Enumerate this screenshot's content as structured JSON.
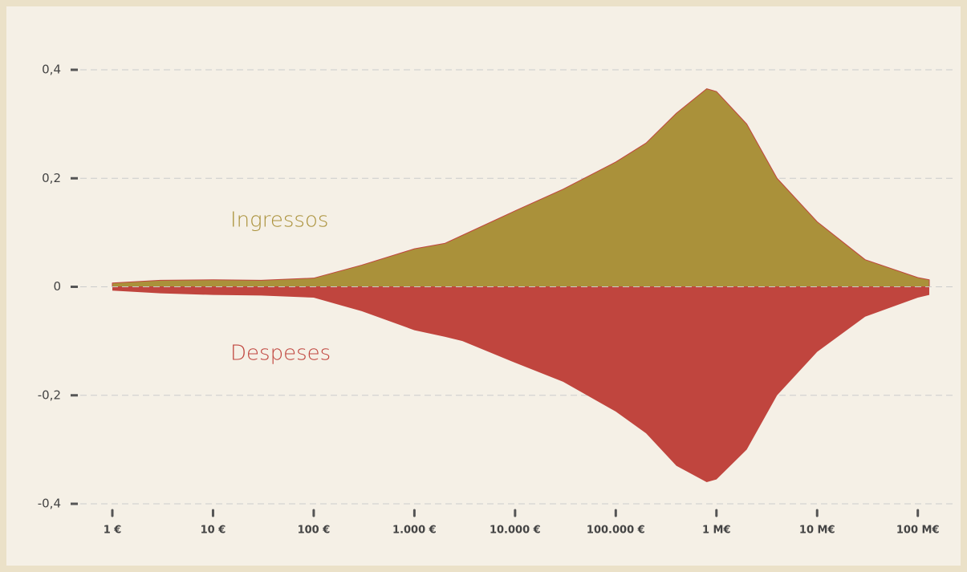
{
  "chart_data": {
    "type": "area",
    "xscale": "log",
    "x": [
      1,
      3,
      10,
      30,
      100,
      300,
      1000,
      2000,
      3000,
      10000,
      30000,
      100000,
      200000,
      400000,
      800000,
      1000000,
      2000000,
      4000000,
      10000000,
      30000000,
      100000000,
      130000000
    ],
    "series": [
      {
        "name": "Ingressos",
        "color": "#aa913a",
        "values": [
          0.007,
          0.012,
          0.013,
          0.012,
          0.016,
          0.04,
          0.07,
          0.08,
          0.095,
          0.14,
          0.18,
          0.23,
          0.265,
          0.32,
          0.365,
          0.36,
          0.3,
          0.2,
          0.12,
          0.05,
          0.017,
          0.013
        ]
      },
      {
        "name": "Despeses",
        "color": "#c0453e",
        "values": [
          -0.007,
          -0.012,
          -0.015,
          -0.016,
          -0.02,
          -0.045,
          -0.08,
          -0.092,
          -0.1,
          -0.14,
          -0.175,
          -0.23,
          -0.27,
          -0.33,
          -0.36,
          -0.355,
          -0.3,
          -0.2,
          -0.12,
          -0.055,
          -0.02,
          -0.015
        ]
      }
    ],
    "xlim": [
      1,
      130000000
    ],
    "xticks": [
      {
        "value": 1,
        "label": "1 €"
      },
      {
        "value": 10,
        "label": "10 €"
      },
      {
        "value": 100,
        "label": "100 €"
      },
      {
        "value": 1000,
        "label": "1.000 €"
      },
      {
        "value": 10000,
        "label": "10.000 €"
      },
      {
        "value": 100000,
        "label": "100.000 €"
      },
      {
        "value": 1000000,
        "label": "1 M€"
      },
      {
        "value": 10000000,
        "label": "10 M€"
      },
      {
        "value": 100000000,
        "label": "100 M€"
      }
    ],
    "ylim": [
      -0.4,
      0.4
    ],
    "yticks": [
      {
        "value": -0.4,
        "label": "-0,4"
      },
      {
        "value": -0.2,
        "label": "-0,2"
      },
      0,
      {
        "value": 0.2,
        "label": "0,2"
      },
      {
        "value": 0.4,
        "label": "0,4"
      }
    ],
    "grid": true
  }
}
